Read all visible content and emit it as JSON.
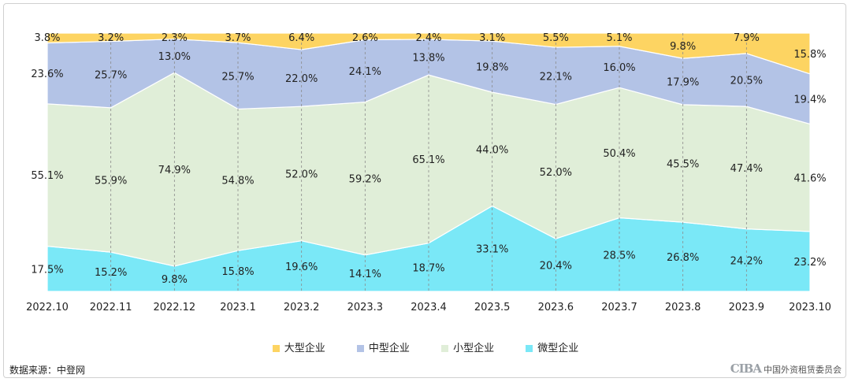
{
  "chart_data": {
    "type": "area",
    "stacked": "percent",
    "categories": [
      "2022.10",
      "2022.11",
      "2022.12",
      "2023.1",
      "2023.2",
      "2023.3",
      "2023.4",
      "2023.5",
      "2023.6",
      "2023.7",
      "2023.8",
      "2023.9",
      "2023.10"
    ],
    "series": [
      {
        "name": "微型企业",
        "color": "#7ae8f7",
        "values": [
          17.5,
          15.2,
          9.8,
          15.8,
          19.6,
          14.1,
          18.7,
          33.1,
          20.4,
          28.5,
          26.8,
          24.2,
          23.2
        ],
        "labels": [
          "17.5%",
          "15.2%",
          "9.8%",
          "15.8%",
          "19.6%",
          "14.1%",
          "18.7%",
          "33.1%",
          "20.4%",
          "28.5%",
          "26.8%",
          "24.2%",
          "23.2%"
        ]
      },
      {
        "name": "小型企业",
        "color": "#e0eed8",
        "values": [
          55.1,
          55.9,
          74.9,
          54.8,
          52.0,
          59.2,
          65.1,
          44.0,
          52.0,
          50.4,
          45.5,
          47.4,
          41.6
        ],
        "labels": [
          "55.1%",
          "55.9%",
          "74.9%",
          "54.8%",
          "52.0%",
          "59.2%",
          "65.1%",
          "44.0%",
          "52.0%",
          "50.4%",
          "45.5%",
          "47.4%",
          "41.6%"
        ]
      },
      {
        "name": "中型企业",
        "color": "#b3c3e6",
        "values": [
          23.6,
          25.7,
          13.0,
          25.7,
          22.0,
          24.1,
          13.8,
          19.8,
          22.1,
          16.0,
          17.9,
          20.5,
          19.4
        ],
        "labels": [
          "23.6%",
          "25.7%",
          "13.0%",
          "25.7%",
          "22.0%",
          "24.1%",
          "13.8%",
          "19.8%",
          "22.1%",
          "16.0%",
          "17.9%",
          "20.5%",
          "19.4%"
        ]
      },
      {
        "name": "大型企业",
        "color": "#fdd462",
        "values": [
          3.8,
          3.2,
          2.3,
          3.7,
          6.4,
          2.6,
          2.4,
          3.1,
          5.5,
          5.1,
          9.8,
          7.9,
          15.8
        ],
        "labels": [
          "3.8%",
          "3.2%",
          "2.3%",
          "3.7%",
          "6.4%",
          "2.6%",
          "2.4%",
          "3.1%",
          "5.5%",
          "5.1%",
          "9.8%",
          "7.9%",
          "15.8%"
        ]
      }
    ],
    "legend_order": [
      "大型企业",
      "中型企业",
      "小型企业",
      "微型企业"
    ],
    "legend_position": "bottom",
    "grid": "vertical-dashed",
    "ylim": [
      0,
      100
    ]
  },
  "legend": {
    "items": [
      {
        "name": "大型企业",
        "color": "#fdd462"
      },
      {
        "name": "中型企业",
        "color": "#b3c3e6"
      },
      {
        "name": "小型企业",
        "color": "#e0eed8"
      },
      {
        "name": "微型企业",
        "color": "#7ae8f7"
      }
    ]
  },
  "footer": {
    "source": "数据来源：中登网",
    "org_logo": "CIBA",
    "org_name": "中国外资租赁委员会"
  }
}
